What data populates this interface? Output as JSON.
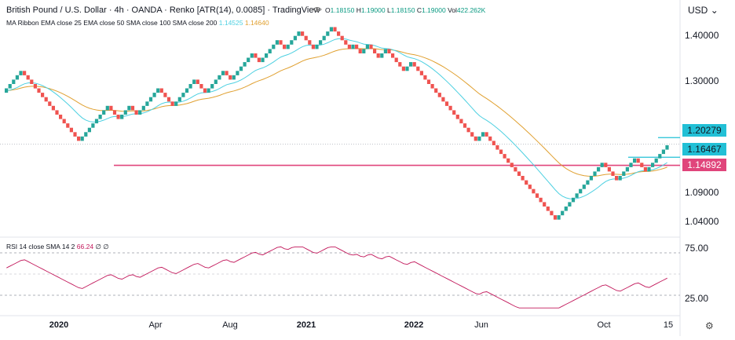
{
  "header": {
    "title": "British Pound / U.S. Dollar · 4h · OANDA · Renko [ATR(14), 0.0085] · TradingView",
    "ohlc": {
      "o_label": "O",
      "o": "1.18150",
      "h_label": "H",
      "h": "1.19000",
      "l_label": "L",
      "l": "1.18150",
      "c_label": "C",
      "c": "1.19000",
      "vol_label": "Vol",
      "vol": "422.262K"
    },
    "indicator_line": "MA Ribbon  EMA close 25  EMA close 50  SMA close 100  SMA close 200",
    "indicator_vals": [
      "1.14525",
      "1.14640"
    ],
    "currency": "USD"
  },
  "price_axis": {
    "labels": [
      "1.40000",
      "1.30000",
      "1.20279",
      "1.16467",
      "1.14892",
      "1.09000",
      "1.04000"
    ],
    "tags": {
      "t1": "1.20279",
      "t2": "1.16467",
      "t3": "1.14892"
    }
  },
  "rsi": {
    "label": "RSI 14 close SMA 14 2",
    "value": "66.24",
    "extra": "∅ ∅",
    "axis_labels": [
      "75.00",
      "25.00"
    ]
  },
  "time_axis": {
    "labels": [
      {
        "text": "2020",
        "year": true
      },
      {
        "text": "Apr",
        "year": false
      },
      {
        "text": "Aug",
        "year": false
      },
      {
        "text": "2021",
        "year": true
      },
      {
        "text": "2022",
        "year": true
      },
      {
        "text": "Jun",
        "year": false
      },
      {
        "text": "Oct",
        "year": false
      },
      {
        "text": "15",
        "year": false
      }
    ]
  },
  "colors": {
    "up": "#26a69a",
    "down": "#ef5350",
    "ema_fast": "#4dd0e1",
    "ema_slow": "#e0a030",
    "hline_pink": "#e0457b",
    "rsi_line": "#c2185b",
    "cyan_tag": "#22c0d6",
    "pink_tag": "#e0457b"
  },
  "chart_data": {
    "type": "renko",
    "symbol": "GBPUSD",
    "interval": "4h",
    "box_size": 0.0085,
    "y_ticks": [
      1.04,
      1.09,
      1.3,
      1.4
    ],
    "horizontal_lines": [
      1.14892,
      1.16467,
      1.20279
    ],
    "price_path": [
      1.29,
      1.335,
      1.295,
      1.305,
      1.285,
      1.195,
      1.205,
      1.265,
      1.245,
      1.255,
      1.235,
      1.245,
      1.27,
      1.245,
      1.255,
      1.28,
      1.3,
      1.26,
      1.32,
      1.29,
      1.34,
      1.315,
      1.37,
      1.345,
      1.4,
      1.375,
      1.41,
      1.37,
      1.42,
      1.39,
      1.375,
      1.385,
      1.36,
      1.385,
      1.35,
      1.38,
      1.33,
      1.35,
      1.3,
      1.315,
      1.235,
      1.24,
      1.215,
      1.23,
      1.19,
      1.22,
      1.21,
      1.15,
      1.1,
      1.04,
      1.09,
      1.13,
      1.14,
      1.16,
      1.12,
      1.165,
      1.135,
      1.15,
      1.19
    ],
    "rsi_range": [
      25,
      75
    ]
  }
}
